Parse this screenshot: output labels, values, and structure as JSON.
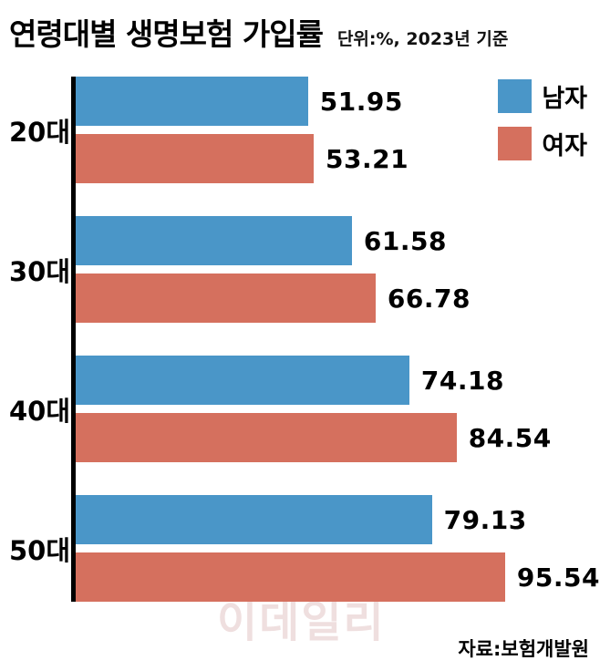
{
  "header": {
    "title": "연령대별 생명보험 가입률",
    "unit_note": "단위:%, 2023년 기준"
  },
  "legend": [
    {
      "key": "male",
      "label": "남자",
      "color": "#4a96c8"
    },
    {
      "key": "female",
      "label": "여자",
      "color": "#d5705e"
    }
  ],
  "chart_data": {
    "type": "bar",
    "orientation": "horizontal",
    "title": "연령대별 생명보험 가입률",
    "unit": "단위:%, 2023년 기준",
    "categories": [
      "20대",
      "30대",
      "40대",
      "50대"
    ],
    "series": [
      {
        "name": "남자",
        "key": "male",
        "color": "#4a96c8",
        "values": [
          51.95,
          61.58,
          74.18,
          79.13
        ]
      },
      {
        "name": "여자",
        "key": "female",
        "color": "#d5705e",
        "values": [
          53.21,
          66.78,
          84.54,
          95.54
        ]
      }
    ],
    "value_labels": true,
    "grid": false,
    "legend_position": "top-right"
  },
  "footer": {
    "source": "자료:보험개발원"
  },
  "watermark": "이데일리"
}
